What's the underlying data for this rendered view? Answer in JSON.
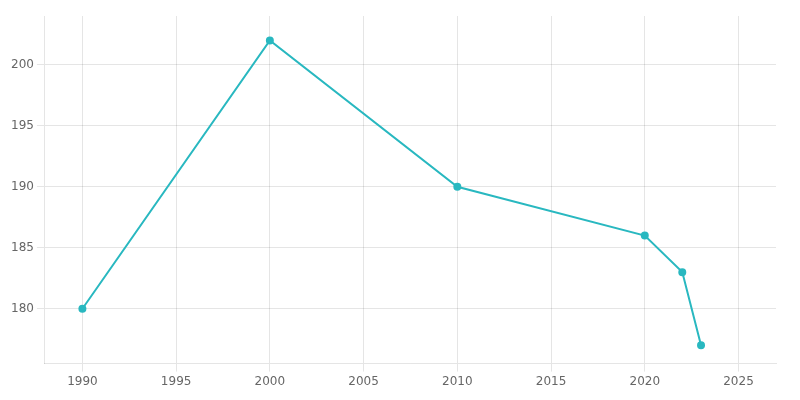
{
  "chart_data": {
    "type": "line",
    "x": [
      1990,
      2000,
      2010,
      2020,
      2022,
      2023
    ],
    "values": [
      180,
      202,
      190,
      186,
      183,
      177
    ],
    "color": "#29b8c0",
    "marker": "o",
    "xlim": [
      1988,
      2027
    ],
    "ylim": [
      175.5,
      204
    ],
    "xticks": [
      1990,
      1995,
      2000,
      2005,
      2010,
      2015,
      2020,
      2025
    ],
    "yticks": [
      180,
      185,
      190,
      195,
      200
    ],
    "grid": true
  }
}
